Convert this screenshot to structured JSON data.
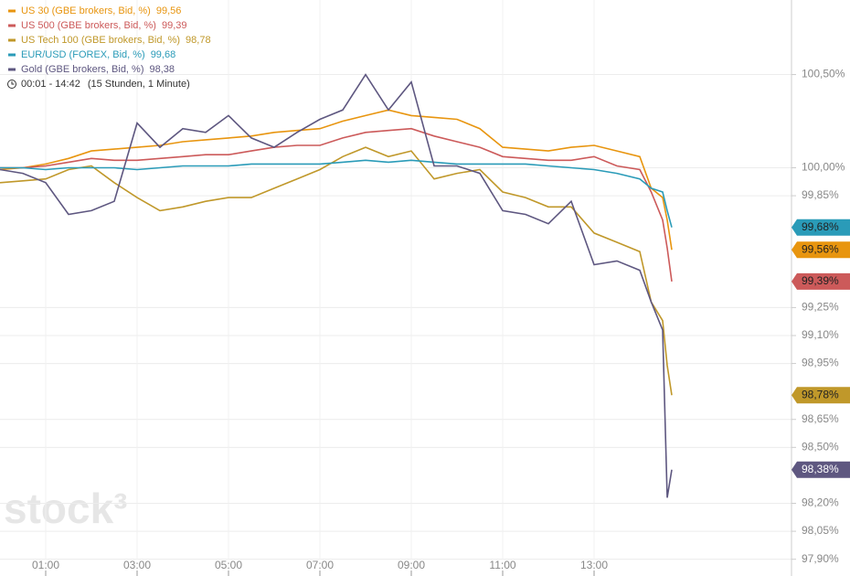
{
  "chart_data": {
    "type": "line",
    "x": [
      0,
      0.5,
      1,
      1.5,
      2,
      2.5,
      3,
      3.5,
      4,
      4.5,
      5,
      5.5,
      6,
      6.5,
      7,
      7.5,
      8,
      8.5,
      9,
      9.5,
      10,
      10.5,
      11,
      11.5,
      12,
      12.5,
      13,
      13.5,
      14,
      14.25,
      14.5,
      14.6,
      14.7
    ],
    "xlim": [
      0,
      17.32
    ],
    "xticks": [
      {
        "value": 1,
        "label": "01:00"
      },
      {
        "value": 3,
        "label": "03:00"
      },
      {
        "value": 5,
        "label": "05:00"
      },
      {
        "value": 7,
        "label": "07:00"
      },
      {
        "value": 9,
        "label": "09:00"
      },
      {
        "value": 11,
        "label": "11:00"
      },
      {
        "value": 13,
        "label": "13:00"
      }
    ],
    "ylim": [
      97.81,
      100.9
    ],
    "yticks": [
      {
        "value": 100.5,
        "label": "100,50%"
      },
      {
        "value": 100,
        "label": "100,00%"
      },
      {
        "value": 99.85,
        "label": "99,85%"
      },
      {
        "value": 99.25,
        "label": "99,25%"
      },
      {
        "value": 99.1,
        "label": "99,10%"
      },
      {
        "value": 98.95,
        "label": "98,95%"
      },
      {
        "value": 98.65,
        "label": "98,65%"
      },
      {
        "value": 98.5,
        "label": "98,50%"
      },
      {
        "value": 98.2,
        "label": "98,20%"
      },
      {
        "value": 98.05,
        "label": "98,05%"
      },
      {
        "value": 97.9,
        "label": "97,90%"
      }
    ],
    "grid": true,
    "time_range": "00:01 - 14:42",
    "duration": "(15 Stunden, 1 Minute)",
    "watermark": "stock³",
    "series": [
      {
        "name": "US 30 (GBE brokers, Bid, %)",
        "legend_value": "99,56",
        "end_label": "99,56%",
        "color": "#e8950f",
        "tag_text": "#222",
        "values": [
          99.99,
          100.0,
          100.02,
          100.05,
          100.09,
          100.1,
          100.11,
          100.12,
          100.14,
          100.15,
          100.16,
          100.17,
          100.19,
          100.2,
          100.21,
          100.25,
          100.28,
          100.31,
          100.28,
          100.27,
          100.26,
          100.21,
          100.11,
          100.1,
          100.09,
          100.11,
          100.12,
          100.09,
          100.06,
          99.89,
          99.84,
          99.72,
          99.56
        ]
      },
      {
        "name": "US 500 (GBE brokers, Bid, %)",
        "legend_value": "99,39",
        "end_label": "99,39%",
        "color": "#cc5a5a",
        "tag_text": "#222",
        "values": [
          100.0,
          100.0,
          100.01,
          100.03,
          100.05,
          100.04,
          100.04,
          100.05,
          100.06,
          100.07,
          100.07,
          100.09,
          100.11,
          100.12,
          100.12,
          100.16,
          100.19,
          100.2,
          100.21,
          100.17,
          100.14,
          100.11,
          100.06,
          100.05,
          100.04,
          100.04,
          100.06,
          100.01,
          99.99,
          99.87,
          99.72,
          99.57,
          99.39
        ]
      },
      {
        "name": "US Tech 100 (GBE brokers, Bid, %)",
        "legend_value": "98,78",
        "end_label": "98,78%",
        "color": "#c0982a",
        "tag_text": "#222",
        "values": [
          99.92,
          99.93,
          99.94,
          99.99,
          100.01,
          99.92,
          99.84,
          99.77,
          99.79,
          99.82,
          99.84,
          99.84,
          99.89,
          99.94,
          99.99,
          100.06,
          100.11,
          100.06,
          100.09,
          99.94,
          99.97,
          99.99,
          99.87,
          99.84,
          99.79,
          99.79,
          99.65,
          99.6,
          99.55,
          99.28,
          99.18,
          98.94,
          98.78
        ]
      },
      {
        "name": "EUR/USD (FOREX, Bid, %)",
        "legend_value": "99,68",
        "end_label": "99,68%",
        "color": "#2a9bb8",
        "tag_text": "#222",
        "values": [
          100.0,
          100.0,
          99.99,
          100.0,
          100.0,
          100.0,
          99.99,
          100.0,
          100.01,
          100.01,
          100.01,
          100.02,
          100.02,
          100.02,
          100.02,
          100.03,
          100.04,
          100.03,
          100.04,
          100.03,
          100.02,
          100.02,
          100.02,
          100.02,
          100.01,
          100.0,
          99.99,
          99.97,
          99.94,
          99.89,
          99.87,
          99.77,
          99.68
        ]
      },
      {
        "name": "Gold (GBE brokers, Bid, %)",
        "legend_value": "98,38",
        "end_label": "98,38%",
        "color": "#5e5780",
        "tag_text": "#fff",
        "values": [
          99.99,
          99.97,
          99.92,
          99.75,
          99.77,
          99.82,
          100.24,
          100.11,
          100.21,
          100.19,
          100.28,
          100.16,
          100.11,
          100.19,
          100.26,
          100.31,
          100.5,
          100.31,
          100.46,
          100.01,
          100.01,
          99.97,
          99.77,
          99.75,
          99.7,
          99.82,
          99.48,
          99.5,
          99.45,
          99.28,
          99.13,
          98.23,
          98.38
        ]
      }
    ]
  }
}
